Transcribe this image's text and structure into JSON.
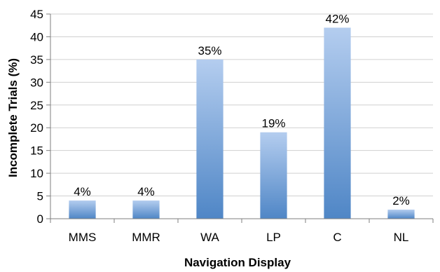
{
  "chart_data": {
    "type": "bar",
    "title": "",
    "xlabel": "Navigation Display",
    "ylabel": "Incomplete Trials (%)",
    "categories": [
      "MMS",
      "MMR",
      "WA",
      "LP",
      "C",
      "NL"
    ],
    "values": [
      4,
      4,
      35,
      19,
      42,
      2
    ],
    "data_labels": [
      "4%",
      "4%",
      "35%",
      "19%",
      "42%",
      "2%"
    ],
    "ylim": [
      0,
      45
    ],
    "yticks": [
      0,
      5,
      10,
      15,
      20,
      25,
      30,
      35,
      40,
      45
    ],
    "grid": true,
    "legend": "none",
    "colors": {
      "bar_top": "#b4cdef",
      "bar_bottom": "#4f86c6",
      "grid": "#d0d0d0",
      "axis": "#7f7f7f"
    }
  }
}
